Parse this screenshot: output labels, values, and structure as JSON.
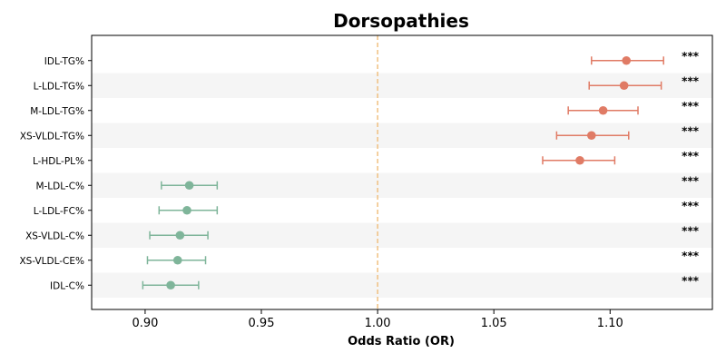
{
  "chart_data": {
    "type": "forest",
    "title": "Dorsopathies",
    "xlabel": "Odds Ratio (OR)",
    "xlim": [
      0.877,
      1.144
    ],
    "xticks": [
      "0.90",
      "0.95",
      "1.00",
      "1.05",
      "1.10"
    ],
    "reference_line": 1.0,
    "colors": {
      "positive": "#e07b65",
      "negative": "#7fb59a",
      "reference": "#f0c080",
      "band": "#f5f5f5"
    },
    "rows": [
      {
        "label": "IDL-TG%",
        "or": 1.107,
        "lower": 1.092,
        "upper": 1.123,
        "sig": "***",
        "direction": "positive"
      },
      {
        "label": "L-LDL-TG%",
        "or": 1.106,
        "lower": 1.091,
        "upper": 1.122,
        "sig": "***",
        "direction": "positive"
      },
      {
        "label": "M-LDL-TG%",
        "or": 1.097,
        "lower": 1.082,
        "upper": 1.112,
        "sig": "***",
        "direction": "positive"
      },
      {
        "label": "XS-VLDL-TG%",
        "or": 1.092,
        "lower": 1.077,
        "upper": 1.108,
        "sig": "***",
        "direction": "positive"
      },
      {
        "label": "L-HDL-PL%",
        "or": 1.087,
        "lower": 1.071,
        "upper": 1.102,
        "sig": "***",
        "direction": "positive"
      },
      {
        "label": "M-LDL-C%",
        "or": 0.919,
        "lower": 0.907,
        "upper": 0.931,
        "sig": "***",
        "direction": "negative"
      },
      {
        "label": "L-LDL-FC%",
        "or": 0.918,
        "lower": 0.906,
        "upper": 0.931,
        "sig": "***",
        "direction": "negative"
      },
      {
        "label": "XS-VLDL-C%",
        "or": 0.915,
        "lower": 0.902,
        "upper": 0.927,
        "sig": "***",
        "direction": "negative"
      },
      {
        "label": "XS-VLDL-CE%",
        "or": 0.914,
        "lower": 0.901,
        "upper": 0.926,
        "sig": "***",
        "direction": "negative"
      },
      {
        "label": "IDL-C%",
        "or": 0.911,
        "lower": 0.899,
        "upper": 0.923,
        "sig": "***",
        "direction": "negative"
      }
    ]
  }
}
